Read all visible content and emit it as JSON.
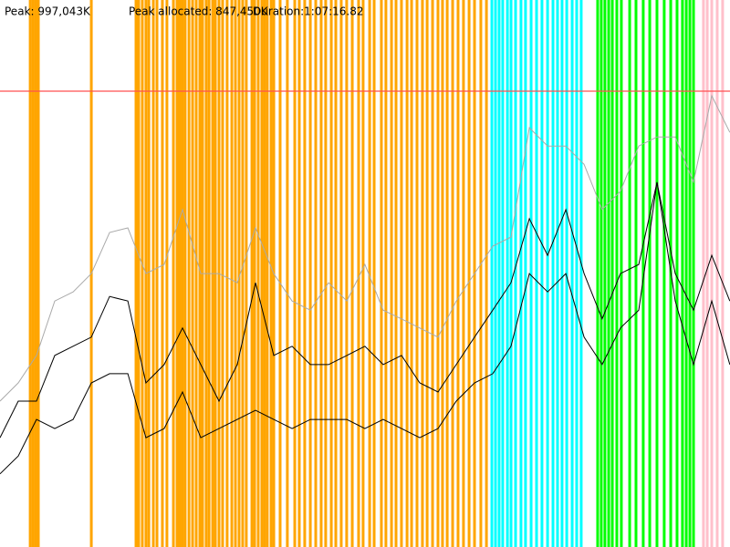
{
  "chart_data": {
    "type": "line",
    "header": [
      "Peak: 997,043K",
      "Peak allocated: 847,450K",
      "Duration:1:07:16.82"
    ],
    "xlim": [
      0,
      4036.82
    ],
    "ylim": [
      0,
      1196452
    ],
    "peak_line": {
      "value": 997043,
      "color": "#ff5050"
    },
    "events": [
      {
        "color": "#ffa500",
        "x": [
          167,
          182,
          197,
          212,
          505,
          752,
          767,
          787,
          807,
          823,
          848,
          868,
          898,
          923,
          959,
          979,
          994,
          1009,
          1024,
          1045,
          1065,
          1085,
          1105,
          1120,
          1140,
          1156,
          1176,
          1191,
          1211,
          1231,
          1256,
          1282,
          1302,
          1322,
          1342,
          1362,
          1393,
          1408,
          1428,
          1448,
          1463,
          1478,
          1499,
          1514,
          1549,
          1589,
          1630,
          1655,
          1685,
          1716,
          1746,
          1776,
          1801,
          1832,
          1857,
          1887,
          1917,
          1948,
          1983,
          2008,
          2044,
          2069,
          2109,
          2134,
          2165,
          2190,
          2220,
          2251,
          2276,
          2306,
          2336,
          2362,
          2392,
          2422,
          2447,
          2473,
          2503,
          2533,
          2563,
          2594,
          2624,
          2659,
          2690
        ]
      },
      {
        "color": "#00ffff",
        "x": [
          2720,
          2740,
          2760,
          2780,
          2806,
          2826,
          2851,
          2881,
          2906,
          2937,
          2967,
          2997,
          3028,
          3058,
          3083,
          3108,
          3134,
          3164,
          3189,
          3214
        ]
      },
      {
        "color": "#00ff00",
        "x": [
          3305,
          3325,
          3345,
          3366,
          3386,
          3411,
          3436,
          3482,
          3517,
          3557,
          3593,
          3633,
          3673,
          3709,
          3744,
          3774,
          3795,
          3815,
          3835
        ]
      },
      {
        "color": "#ffc0cb",
        "x": [
          3890,
          3911,
          3936,
          3966,
          3996
        ]
      }
    ],
    "x": [
      0,
      101,
      202,
      303,
      404,
      505,
      606,
      707,
      807,
      908,
      1009,
      1110,
      1211,
      1312,
      1413,
      1514,
      1615,
      1716,
      1817,
      1918,
      2018,
      2119,
      2220,
      2321,
      2422,
      2523,
      2624,
      2725,
      2826,
      2927,
      3028,
      3129,
      3230,
      3330,
      3431,
      3532,
      3633,
      3734,
      3835,
      3936,
      4036
    ],
    "series": [
      {
        "color": "#aaaaaa",
        "values": [
          319000,
          359000,
          419000,
          538000,
          558000,
          598000,
          688000,
          698000,
          598000,
          618000,
          738000,
          598000,
          598000,
          578000,
          698000,
          598000,
          538000,
          518000,
          578000,
          538000,
          618000,
          518000,
          499000,
          479000,
          459000,
          538000,
          598000,
          658000,
          678000,
          917000,
          877000,
          877000,
          837000,
          738000,
          778000,
          877000,
          897000,
          897000,
          798000,
          987000,
          907000
        ]
      },
      {
        "color": "#000000",
        "values": [
          239000,
          319000,
          319000,
          419000,
          439000,
          459000,
          548000,
          538000,
          359000,
          399000,
          479000,
          399000,
          319000,
          399000,
          578000,
          419000,
          439000,
          399000,
          399000,
          419000,
          439000,
          399000,
          419000,
          359000,
          339000,
          399000,
          459000,
          518000,
          578000,
          718000,
          638000,
          738000,
          598000,
          499000,
          598000,
          618000,
          798000,
          598000,
          518000,
          638000,
          538000
        ]
      },
      {
        "color": "#000000",
        "values": [
          160000,
          199000,
          279000,
          259000,
          279000,
          359000,
          379000,
          379000,
          239000,
          259000,
          339000,
          239000,
          259000,
          279000,
          299000,
          279000,
          259000,
          279000,
          279000,
          279000,
          259000,
          279000,
          259000,
          239000,
          259000,
          319000,
          359000,
          379000,
          439000,
          598000,
          558000,
          598000,
          459000,
          399000,
          479000,
          518000,
          798000,
          538000,
          399000,
          538000,
          399000
        ]
      }
    ]
  }
}
